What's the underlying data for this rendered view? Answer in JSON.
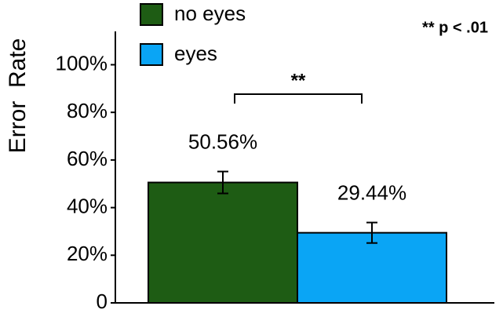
{
  "chart_data": {
    "type": "bar",
    "y_label": "Error  Rate",
    "annotations": [
      "**",
      "** p < .01"
    ],
    "categories": [
      null
    ],
    "series": [
      {
        "name": "no eyes",
        "color": "#1e5c14",
        "values": [
          50.56
        ],
        "value_labels": [
          "50.56%"
        ],
        "errors": [
          4.6
        ]
      },
      {
        "name": "eyes",
        "color": "#0aa5f5",
        "values": [
          29.44
        ],
        "value_labels": [
          "29.44%"
        ],
        "errors": [
          4.3
        ]
      }
    ],
    "ylim": [
      0,
      114
    ],
    "yticks": [
      0,
      {
        "value": 20,
        "label": "20%"
      },
      {
        "value": 40,
        "label": "40%"
      },
      {
        "value": 60,
        "label": "60%"
      },
      {
        "value": 80,
        "label": "80%"
      },
      {
        "value": 100,
        "label": "100%"
      }
    ],
    "legend": "top-left"
  }
}
